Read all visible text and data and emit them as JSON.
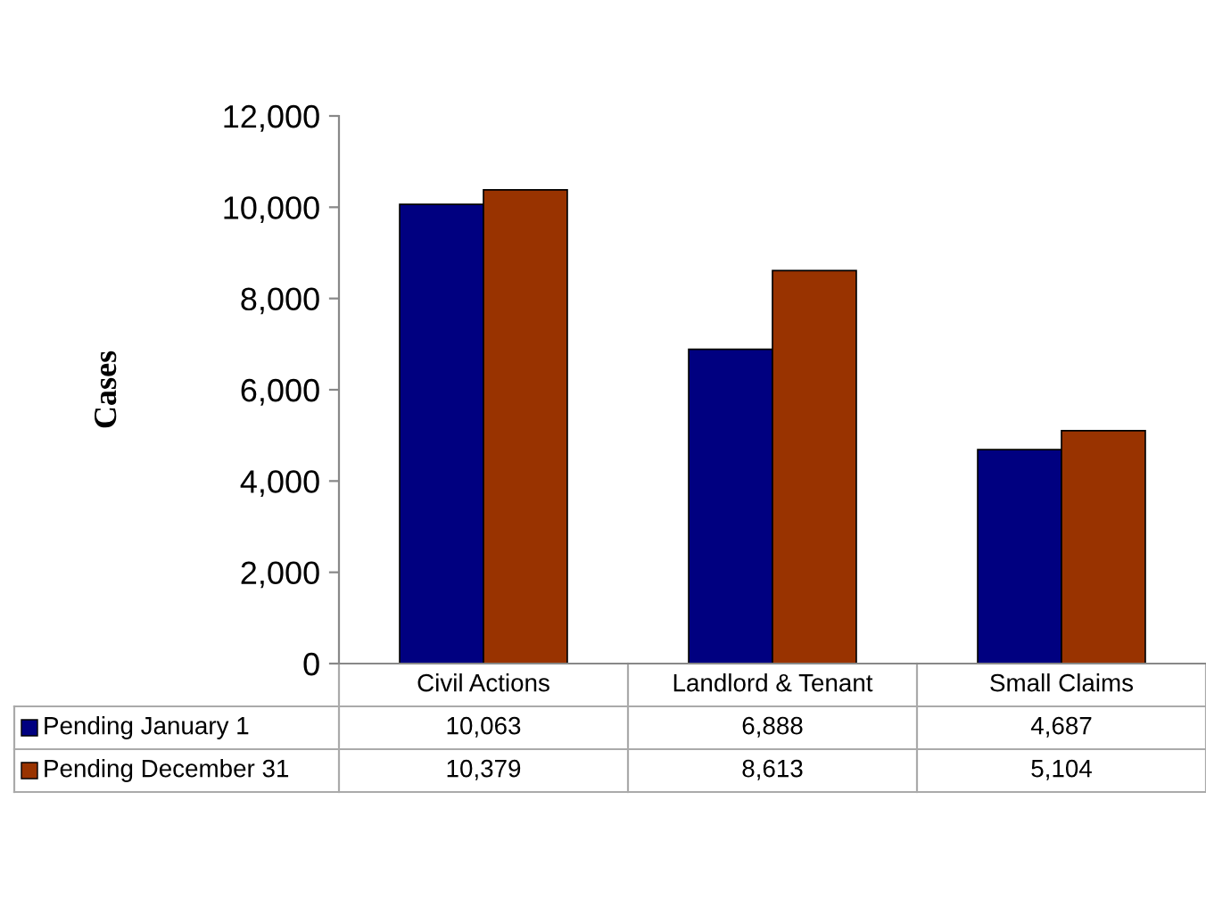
{
  "chart_data": {
    "type": "bar",
    "ylabel": "Cases",
    "categories": [
      "Civil Actions",
      "Landlord & Tenant",
      "Small Claims"
    ],
    "series": [
      {
        "name": "Pending January 1",
        "color": "#000080",
        "values": [
          10063,
          6888,
          4687
        ],
        "value_labels": [
          "10,063",
          "6,888",
          "4,687"
        ]
      },
      {
        "name": "Pending December 31",
        "color": "#993300",
        "values": [
          10379,
          8613,
          5104
        ],
        "value_labels": [
          "10,379",
          "8,613",
          "5,104"
        ]
      }
    ],
    "ylim": [
      0,
      12000
    ],
    "yticks": [
      0,
      {
        "value": 2000,
        "label": "2,000"
      },
      {
        "value": 4000,
        "label": "4,000"
      },
      {
        "value": 6000,
        "label": "6,000"
      },
      {
        "value": 8000,
        "label": "8,000"
      },
      {
        "value": 10000,
        "label": "10,000"
      },
      {
        "value": 12000,
        "label": "12,000"
      }
    ],
    "legend": "bottom",
    "grid": false
  }
}
